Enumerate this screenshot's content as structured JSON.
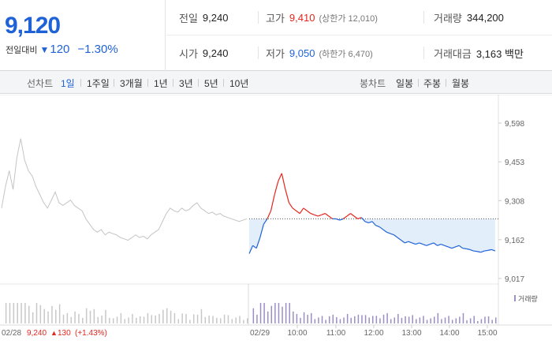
{
  "quote": {
    "price": "9,120",
    "change_label": "전일대비",
    "change_arrow": "▼",
    "change_value": "120",
    "change_pct": "−1.30%"
  },
  "stats": {
    "prev_close": {
      "label": "전일",
      "value": "9,240"
    },
    "high": {
      "label": "고가",
      "value": "9,410",
      "sub": "(상한가 12,010)"
    },
    "volume": {
      "label": "거래량",
      "value": "344,200"
    },
    "open": {
      "label": "시가",
      "value": "9,240"
    },
    "low": {
      "label": "저가",
      "value": "9,050",
      "sub": "(하한가 6,470)"
    },
    "amount": {
      "label": "거래대금",
      "value": "3,163 백만"
    }
  },
  "toolbar": {
    "line_chart_label": "선차트",
    "periods": [
      "1일",
      "1주일",
      "3개월",
      "1년",
      "3년",
      "5년",
      "10년"
    ],
    "active_period": "1일",
    "candle_chart_label": "봉차트",
    "candles": [
      "일봉",
      "주봉",
      "월봉"
    ]
  },
  "colors": {
    "up": "#e4251d",
    "down": "#1f62d8",
    "prev_day": "#c4c4c4",
    "volume": "#9b8fc4"
  },
  "chart_data": {
    "type": "line",
    "y_ticks": [
      "9,598",
      "9,453",
      "9,308",
      "9,162",
      "9,017"
    ],
    "ylim": [
      9017,
      9598
    ],
    "reference_price": 9240,
    "x_labels": [
      "10:00",
      "11:00",
      "12:00",
      "13:00",
      "14:00",
      "15:00"
    ],
    "prev_day": {
      "date_label": "02/28",
      "close": "9,240",
      "change_arrow": "▲",
      "change": "130",
      "change_pct": "(+1.43%)",
      "values": [
        9280,
        9360,
        9420,
        9350,
        9470,
        9540,
        9460,
        9420,
        9400,
        9360,
        9330,
        9300,
        9280,
        9310,
        9340,
        9300,
        9290,
        9300,
        9310,
        9290,
        9280,
        9270,
        9240,
        9220,
        9200,
        9190,
        9200,
        9180,
        9190,
        9185,
        9180,
        9170,
        9165,
        9160,
        9170,
        9180,
        9170,
        9175,
        9165,
        9180,
        9190,
        9200,
        9230,
        9260,
        9280,
        9270,
        9265,
        9280,
        9270,
        9275,
        9290,
        9300,
        9280,
        9270,
        9260,
        9265,
        9255,
        9260,
        9250,
        9245,
        9240,
        9235,
        9230,
        9235,
        9240
      ]
    },
    "today": {
      "date_label": "02/29",
      "values": [
        9110,
        9140,
        9130,
        9170,
        9220,
        9240,
        9270,
        9330,
        9380,
        9410,
        9350,
        9300,
        9280,
        9270,
        9260,
        9280,
        9270,
        9260,
        9255,
        9250,
        9255,
        9260,
        9250,
        9240,
        9240,
        9235,
        9240,
        9250,
        9260,
        9250,
        9240,
        9245,
        9230,
        9225,
        9230,
        9215,
        9210,
        9200,
        9190,
        9185,
        9180,
        9170,
        9160,
        9150,
        9155,
        9150,
        9145,
        9150,
        9145,
        9140,
        9145,
        9150,
        9140,
        9145,
        9140,
        9135,
        9130,
        9135,
        9140,
        9130,
        9128,
        9125,
        9120,
        9118,
        9115,
        9120,
        9122,
        9125,
        9120
      ]
    },
    "volume_label": "거래량"
  }
}
